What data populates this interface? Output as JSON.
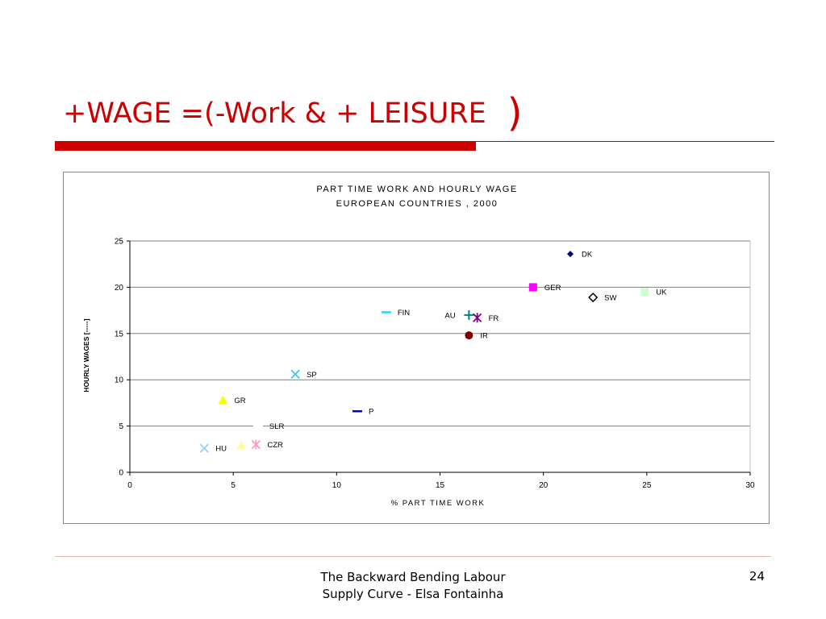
{
  "slide": {
    "title": "+WAGE =(-Work &  + LEISURE",
    "title_paren": ")",
    "footer_line1": "The Backward Bending Labour",
    "footer_line2": "Supply Curve - Elsa Fontainha",
    "page_number": "24",
    "accent_color": "#cc0000"
  },
  "chart_data": {
    "type": "scatter",
    "title": "PART TIME WORK AND HOURLY WAGE",
    "subtitle": "EUROPEAN COUNTRIES , 2000",
    "xlabel": "% PART TIME WORK",
    "ylabel": "HOURLY WAGES [-----]",
    "xlim": [
      0,
      30
    ],
    "ylim": [
      0,
      25
    ],
    "x_ticks": [
      "0",
      "5",
      "10",
      "15",
      "20",
      "25",
      "30"
    ],
    "y_ticks": [
      "0",
      "5",
      "10",
      "15",
      "20",
      "25"
    ],
    "grid": "horizontal",
    "legend": "none",
    "points": [
      {
        "label": "DK",
        "x": 21.3,
        "y": 23.6,
        "marker": "diamond",
        "color": "#000080"
      },
      {
        "label": "GER",
        "x": 19.5,
        "y": 20.0,
        "marker": "square",
        "color": "#ff00ff"
      },
      {
        "label": "SW",
        "x": 22.4,
        "y": 18.9,
        "marker": "diamond-open",
        "color": "#000000"
      },
      {
        "label": "UK",
        "x": 24.9,
        "y": 19.5,
        "marker": "square",
        "color": "#ccffcc"
      },
      {
        "label": "FIN",
        "x": 12.4,
        "y": 17.3,
        "marker": "dash",
        "color": "#33ccff"
      },
      {
        "label": "AU",
        "x": 16.4,
        "y": 17.0,
        "marker": "plus",
        "color": "#008080"
      },
      {
        "label": "FR",
        "x": 16.8,
        "y": 16.7,
        "marker": "star",
        "color": "#800080"
      },
      {
        "label": "IR",
        "x": 16.4,
        "y": 14.8,
        "marker": "circle",
        "color": "#800000"
      },
      {
        "label": "SP",
        "x": 8.0,
        "y": 10.6,
        "marker": "x",
        "color": "#33ccff"
      },
      {
        "label": "GR",
        "x": 4.5,
        "y": 7.8,
        "marker": "triangle",
        "color": "#ffff00"
      },
      {
        "label": "P",
        "x": 11.0,
        "y": 6.6,
        "marker": "dash",
        "color": "#0000cc"
      },
      {
        "label": "SLR",
        "x": 6.2,
        "y": 5.0,
        "marker": "dash",
        "color": "#ffffff"
      },
      {
        "label": "HU",
        "x": 3.6,
        "y": 2.6,
        "marker": "x",
        "color": "#99ccff"
      },
      {
        "label": "CZR",
        "x": 6.1,
        "y": 3.0,
        "marker": "star",
        "color": "#ff99cc"
      },
      {
        "label": "",
        "x": 5.4,
        "y": 2.9,
        "marker": "triangle",
        "color": "#ffff99"
      }
    ]
  }
}
